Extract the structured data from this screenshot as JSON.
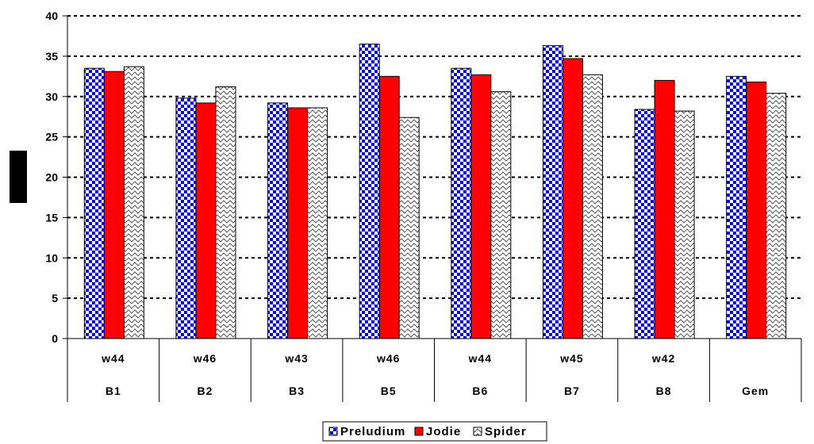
{
  "chart_data": {
    "type": "bar",
    "title": "",
    "xlabel": "",
    "ylabel": "",
    "ylim": [
      0,
      40
    ],
    "yticks": [
      0,
      5,
      10,
      15,
      20,
      25,
      30,
      35,
      40
    ],
    "grid": true,
    "legend_position": "bottom",
    "categories": [
      {
        "top": "w44",
        "bottom": "B1"
      },
      {
        "top": "w46",
        "bottom": "B2"
      },
      {
        "top": "w43",
        "bottom": "B3"
      },
      {
        "top": "w46",
        "bottom": "B5"
      },
      {
        "top": "w44",
        "bottom": "B6"
      },
      {
        "top": "w45",
        "bottom": "B7"
      },
      {
        "top": "w42",
        "bottom": "B8"
      },
      {
        "top": "",
        "bottom": "Gem"
      }
    ],
    "series": [
      {
        "name": "Preludium",
        "pattern": "checker",
        "color": "#0000ff",
        "values": [
          33.5,
          29.8,
          29.2,
          36.5,
          33.5,
          36.3,
          28.4,
          32.5
        ]
      },
      {
        "name": "Jodie",
        "pattern": "solid",
        "color": "#ff0000",
        "values": [
          33.1,
          29.2,
          28.6,
          32.5,
          32.7,
          34.7,
          32.0,
          31.8
        ]
      },
      {
        "name": "Spider",
        "pattern": "wave",
        "color": "#808080",
        "values": [
          33.7,
          31.2,
          28.6,
          27.4,
          30.6,
          32.7,
          28.2,
          30.4
        ]
      }
    ]
  }
}
